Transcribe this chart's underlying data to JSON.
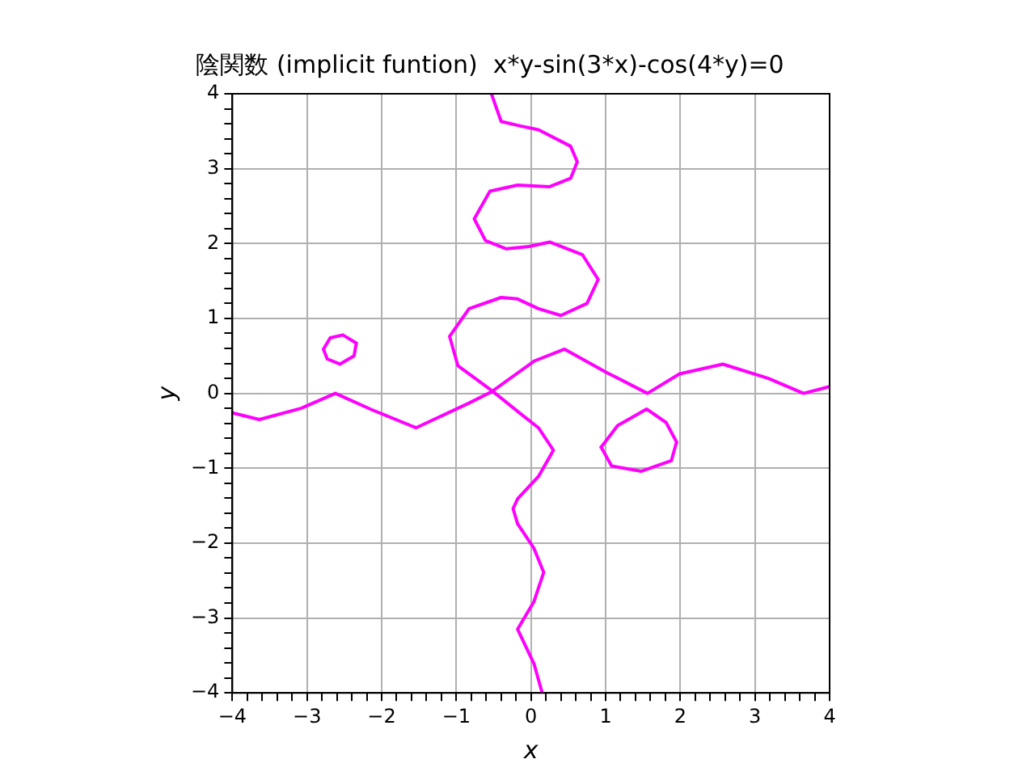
{
  "chart_data": {
    "type": "line",
    "title": "陰関数 (implicit funtion)  x*y-sin(3*x)-cos(4*y)=0",
    "xlabel": "x",
    "ylabel": "y",
    "xlim": [
      -4,
      4
    ],
    "ylim": [
      -4,
      4
    ],
    "xticks": [
      -4,
      {
        "value": -3.8,
        "label": null
      },
      {
        "value": -3.6,
        "label": null
      },
      {
        "value": -3.4,
        "label": null
      },
      {
        "value": -3.2,
        "label": null
      },
      -3,
      {
        "value": -2.8,
        "label": null
      },
      {
        "value": -2.6,
        "label": null
      },
      {
        "value": -2.4,
        "label": null
      },
      {
        "value": -2.2,
        "label": null
      },
      -2,
      {
        "value": -1.8,
        "label": null
      },
      {
        "value": -1.6,
        "label": null
      },
      {
        "value": -1.4,
        "label": null
      },
      {
        "value": -1.2,
        "label": null
      },
      -1,
      {
        "value": -0.8,
        "label": null
      },
      {
        "value": -0.6,
        "label": null
      },
      {
        "value": -0.4,
        "label": null
      },
      {
        "value": -0.2,
        "label": null
      },
      0,
      {
        "value": 0.2,
        "label": null
      },
      {
        "value": 0.4,
        "label": null
      },
      {
        "value": 0.6,
        "label": null
      },
      {
        "value": 0.8,
        "label": null
      },
      1,
      {
        "value": 1.2,
        "label": null
      },
      {
        "value": 1.4,
        "label": null
      },
      {
        "value": 1.6,
        "label": null
      },
      {
        "value": 1.8,
        "label": null
      },
      2,
      {
        "value": 2.2,
        "label": null
      },
      {
        "value": 2.4,
        "label": null
      },
      {
        "value": 2.6,
        "label": null
      },
      {
        "value": 2.8,
        "label": null
      },
      3,
      {
        "value": 3.2,
        "label": null
      },
      {
        "value": 3.4,
        "label": null
      },
      {
        "value": 3.6,
        "label": null
      },
      {
        "value": 3.8,
        "label": null
      },
      4
    ],
    "yticks": [
      -4,
      {
        "value": -3.8,
        "label": null
      },
      {
        "value": -3.6,
        "label": null
      },
      {
        "value": -3.4,
        "label": null
      },
      {
        "value": -3.2,
        "label": null
      },
      -3,
      {
        "value": -2.8,
        "label": null
      },
      {
        "value": -2.6,
        "label": null
      },
      {
        "value": -2.4,
        "label": null
      },
      {
        "value": -2.2,
        "label": null
      },
      -2,
      {
        "value": -1.8,
        "label": null
      },
      {
        "value": -1.6,
        "label": null
      },
      {
        "value": -1.4,
        "label": null
      },
      {
        "value": -1.2,
        "label": null
      },
      -1,
      {
        "value": -0.8,
        "label": null
      },
      {
        "value": -0.6,
        "label": null
      },
      {
        "value": -0.4,
        "label": null
      },
      {
        "value": -0.2,
        "label": null
      },
      0,
      {
        "value": 0.2,
        "label": null
      },
      {
        "value": 0.4,
        "label": null
      },
      {
        "value": 0.6,
        "label": null
      },
      {
        "value": 0.8,
        "label": null
      },
      1,
      {
        "value": 1.2,
        "label": null
      },
      {
        "value": 1.4,
        "label": null
      },
      {
        "value": 1.6,
        "label": null
      },
      {
        "value": 1.8,
        "label": null
      },
      2,
      {
        "value": 2.2,
        "label": null
      },
      {
        "value": 2.4,
        "label": null
      },
      {
        "value": 2.6,
        "label": null
      },
      {
        "value": 2.8,
        "label": null
      },
      3,
      {
        "value": 3.2,
        "label": null
      },
      {
        "value": 3.4,
        "label": null
      },
      {
        "value": 3.6,
        "label": null
      },
      {
        "value": 3.8,
        "label": null
      },
      4
    ],
    "grid": true,
    "legend": false,
    "marker": "none",
    "line_style": "solid",
    "series": [
      {
        "type": "line",
        "color": "#ff00ff",
        "x": [
          -4,
          -3.64,
          -3.08,
          -2.62,
          -2.13,
          -1.54,
          -0.83,
          -0.53,
          0.04,
          0.45,
          1.01,
          1.56,
          1.99,
          2.57,
          3.18,
          3.65,
          4
        ],
        "values": [
          -0.26,
          -0.35,
          -0.2,
          0,
          -0.22,
          -0.46,
          -0.13,
          0.02,
          0.43,
          0.59,
          0.28,
          0,
          0.26,
          0.39,
          0.2,
          0,
          0.09
        ]
      },
      {
        "type": "line",
        "color": "#ff00ff",
        "x": [
          -0.53,
          -0.4,
          -0.14,
          0.1,
          0.53,
          0.62,
          0.53,
          0.25,
          -0.18,
          -0.55,
          -0.76,
          -0.61,
          -0.33,
          -0.03,
          0.25,
          0.69,
          0.9,
          0.75,
          0.4,
          0.1,
          -0.18,
          -0.4,
          -0.83,
          -1.09,
          -0.98,
          -0.53,
          -0.18,
          0.1,
          0.3,
          0.1,
          -0.18,
          -0.24,
          -0.18,
          0.04,
          0.17,
          0.04,
          -0.18,
          0.04,
          0.15
        ],
        "values": [
          4,
          3.63,
          3.57,
          3.52,
          3.3,
          3.09,
          2.87,
          2.76,
          2.78,
          2.7,
          2.33,
          2.04,
          1.93,
          1.96,
          2.02,
          1.85,
          1.52,
          1.2,
          1.04,
          1.13,
          1.26,
          1.28,
          1.13,
          0.76,
          0.37,
          0.04,
          -0.24,
          -0.46,
          -0.76,
          -1.11,
          -1.41,
          -1.54,
          -1.74,
          -2.07,
          -2.39,
          -2.78,
          -3.15,
          -3.61,
          -4
        ]
      },
      {
        "type": "line",
        "color": "#ff00ff",
        "x": [
          -2.78,
          -2.69,
          -2.52,
          -2.34
        ],
        "values": [
          0.59,
          0.74,
          0.78,
          0.67
        ]
      },
      {
        "type": "line",
        "color": "#ff00ff",
        "x": [
          -2.78,
          -2.73,
          -2.56,
          -2.37,
          -2.34
        ],
        "values": [
          0.59,
          0.46,
          0.39,
          0.5,
          0.67
        ]
      },
      {
        "type": "line",
        "color": "#ff00ff",
        "x": [
          0.94,
          1.16,
          1.55,
          1.81,
          1.95
        ],
        "values": [
          -0.72,
          -0.43,
          -0.21,
          -0.39,
          -0.65
        ]
      },
      {
        "type": "line",
        "color": "#ff00ff",
        "x": [
          0.94,
          1.08,
          1.48,
          1.88,
          1.95
        ],
        "values": [
          -0.72,
          -0.97,
          -1.04,
          -0.9,
          -0.65
        ]
      }
    ]
  }
}
